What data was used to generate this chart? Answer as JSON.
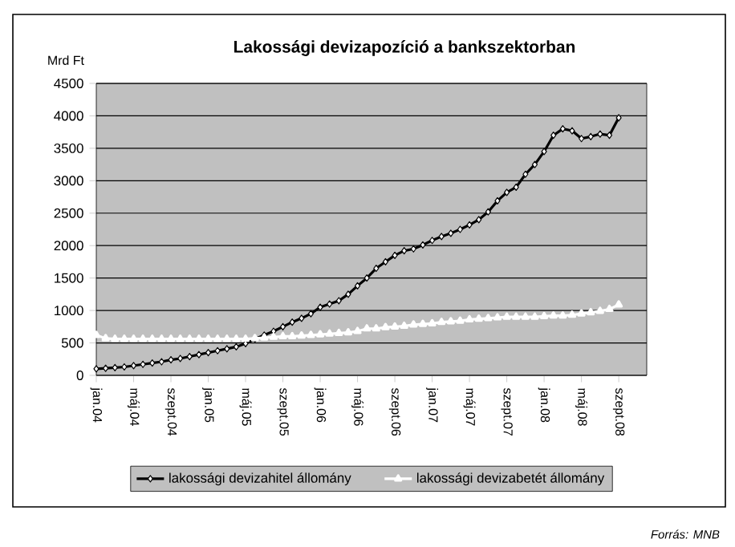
{
  "chart_data": {
    "type": "line",
    "title": "Lakossági devizapozíció  a bankszektorban",
    "ylabel": "Mrd Ft",
    "categories": [
      "jan.04",
      null,
      null,
      null,
      "máj.04",
      null,
      null,
      null,
      "szept.04",
      null,
      null,
      null,
      "jan.05",
      null,
      null,
      null,
      "máj.05",
      null,
      null,
      null,
      "szept.05",
      null,
      null,
      null,
      "jan.06",
      null,
      null,
      null,
      "máj.06",
      null,
      null,
      null,
      "szept.06",
      null,
      null,
      null,
      "jan.07",
      null,
      null,
      null,
      "máj.07",
      null,
      null,
      null,
      "szept.07",
      null,
      null,
      null,
      "jan.08",
      null,
      null,
      null,
      "máj.08",
      null,
      null,
      null,
      "szept.08",
      null,
      null,
      null
    ],
    "series": [
      {
        "name": "lakossági devizahitel állomány",
        "color": "#000000",
        "marker": "diamond",
        "values": [
          100,
          110,
          120,
          130,
          150,
          170,
          190,
          210,
          240,
          260,
          290,
          320,
          350,
          380,
          410,
          440,
          490,
          560,
          620,
          680,
          750,
          820,
          880,
          950,
          1050,
          1100,
          1150,
          1250,
          1380,
          1500,
          1650,
          1750,
          1850,
          1920,
          1950,
          2010,
          2080,
          2140,
          2190,
          2250,
          2320,
          2400,
          2520,
          2690,
          2820,
          2900,
          3100,
          3250,
          3450,
          3700,
          3800,
          3770,
          3650,
          3680,
          3720,
          3700,
          3970,
          null,
          null,
          null
        ]
      },
      {
        "name": "lakossági devizabetét állomány",
        "color": "#ffffff",
        "marker": "triangle",
        "values": [
          620,
          570,
          560,
          560,
          560,
          560,
          560,
          560,
          560,
          560,
          560,
          560,
          560,
          560,
          560,
          560,
          560,
          570,
          580,
          590,
          600,
          600,
          610,
          620,
          630,
          640,
          650,
          660,
          680,
          720,
          720,
          740,
          750,
          760,
          780,
          790,
          800,
          820,
          830,
          840,
          860,
          870,
          880,
          890,
          900,
          900,
          900,
          900,
          910,
          920,
          920,
          930,
          950,
          970,
          990,
          1020,
          1090,
          null,
          null,
          null
        ]
      }
    ],
    "ylim": [
      0,
      4500
    ],
    "yticks": [
      0,
      500,
      1000,
      1500,
      2000,
      2500,
      3000,
      3500,
      4000,
      4500
    ],
    "grid": "y",
    "legend": "bottom",
    "annotations": [
      "Forrás: MNB"
    ]
  }
}
